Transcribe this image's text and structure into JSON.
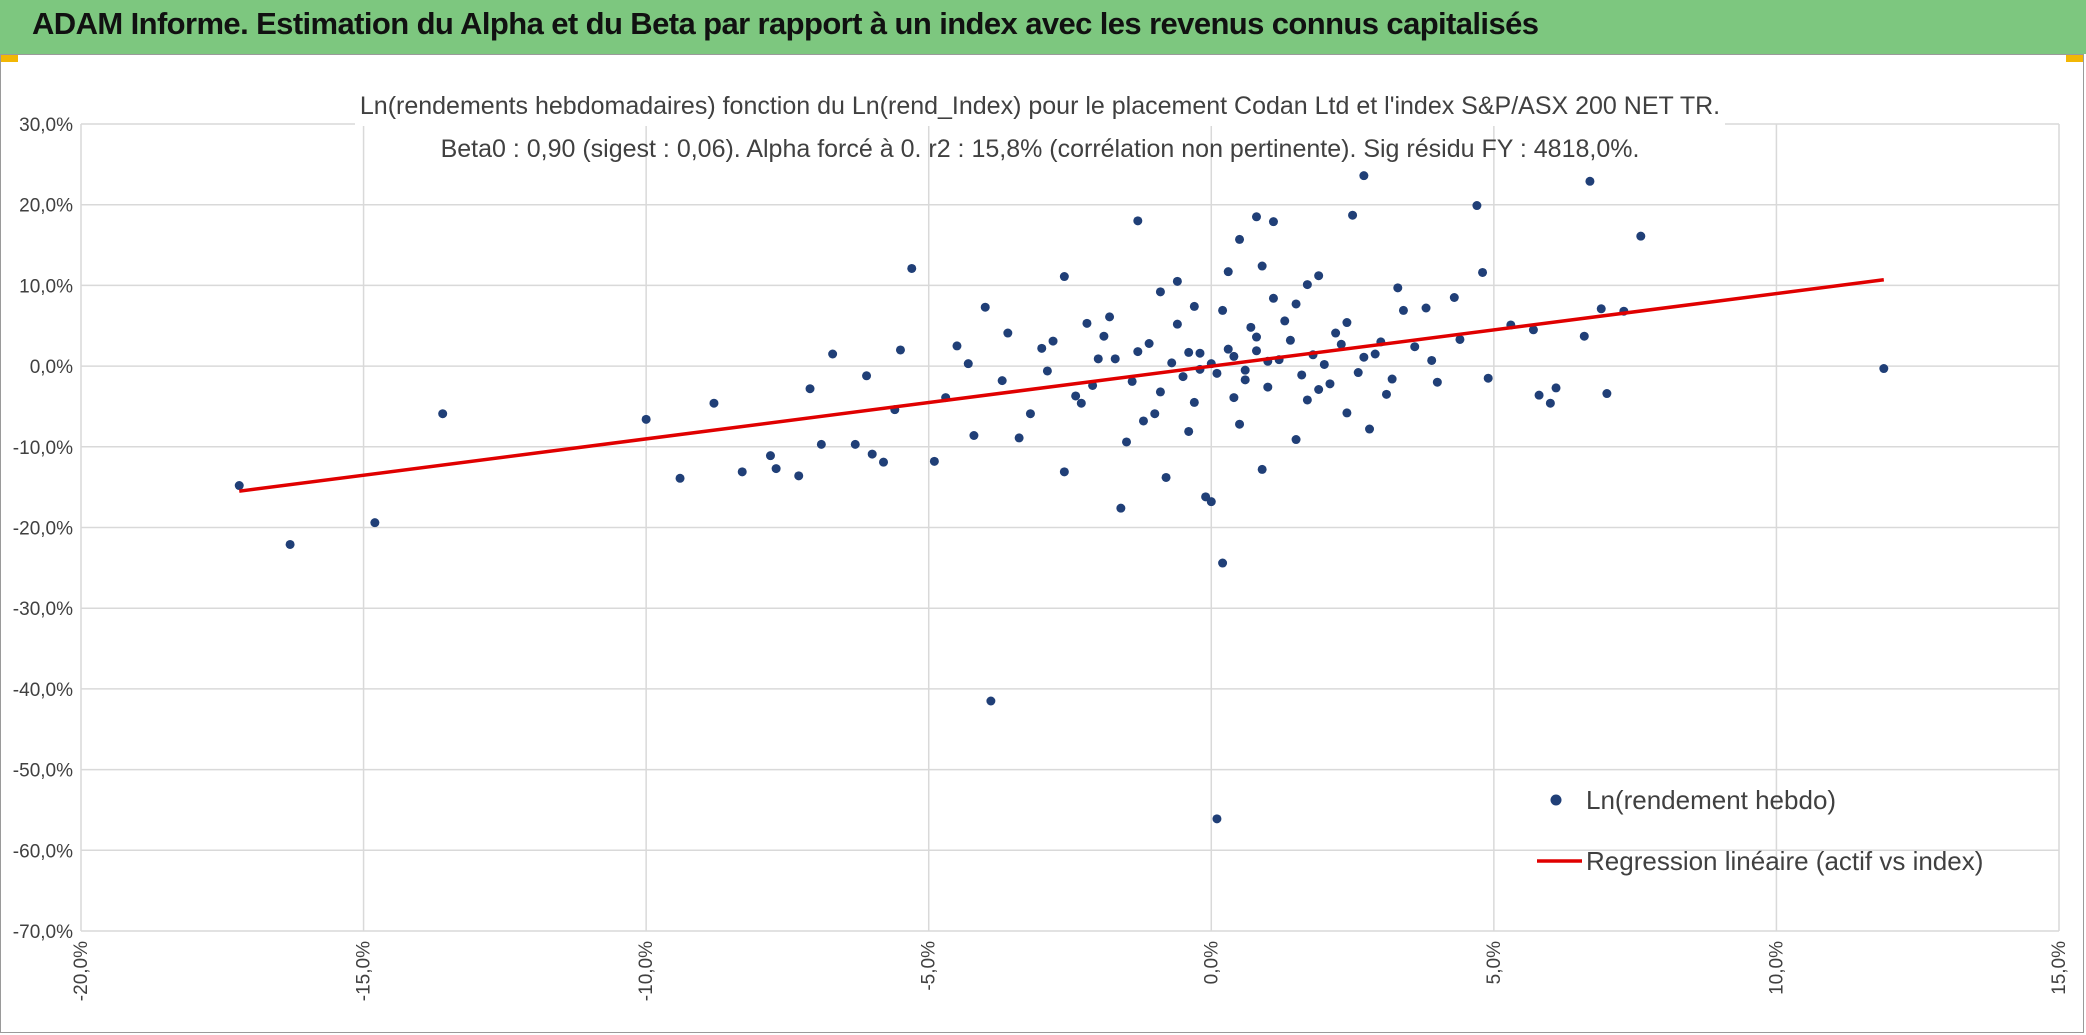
{
  "header": {
    "title": "ADAM Informe. Estimation du Alpha et du Beta par rapport à un index avec les revenus connus capitalisés"
  },
  "colors": {
    "header_bg": "#7dc77f",
    "accent": "#f2b705",
    "points": "#203f77",
    "regression": "#e00000",
    "grid": "#d9d9d9"
  },
  "chart_data": {
    "type": "scatter",
    "title_line1": "Ln(rendements hebdomadaires) fonction du Ln(rend_Index) pour le placement Codan Ltd et l'index S&P/ASX 200 NET TR.",
    "title_line2": "Beta0 : 0,90 (sigest : 0,06). Alpha forcé à 0. r2 : 15,8% (corrélation non pertinente). Sig résidu FY : 4818,0%.",
    "xlim": [
      -20,
      15
    ],
    "ylim": [
      -70,
      30
    ],
    "x_ticks": [
      -20,
      -15,
      -10,
      -5,
      0,
      5,
      10,
      15
    ],
    "y_ticks": [
      30,
      20,
      10,
      0,
      -10,
      -20,
      -30,
      -40,
      -50,
      -60,
      -70
    ],
    "x_tick_labels": [
      "-20,0%",
      "-15,0%",
      "-10,0%",
      "-5,0%",
      "0,0%",
      "5,0%",
      "10,0%",
      "15,0%"
    ],
    "y_tick_labels": [
      "30,0%",
      "20,0%",
      "10,0%",
      "0,0%",
      "-10,0%",
      "-20,0%",
      "-30,0%",
      "-40,0%",
      "-50,0%",
      "-60,0%",
      "-70,0%"
    ],
    "series": [
      {
        "name": "Ln(rendement hebdo)",
        "kind": "scatter",
        "points": [
          [
            -17.2,
            -14.8
          ],
          [
            -16.3,
            -22.1
          ],
          [
            -14.8,
            -19.4
          ],
          [
            -13.6,
            -5.9
          ],
          [
            -10.0,
            -6.6
          ],
          [
            -9.4,
            -13.9
          ],
          [
            -8.8,
            -4.6
          ],
          [
            -8.3,
            -13.1
          ],
          [
            -7.8,
            -11.1
          ],
          [
            -7.7,
            -12.7
          ],
          [
            -7.3,
            -13.6
          ],
          [
            -7.1,
            -2.8
          ],
          [
            -6.9,
            -9.7
          ],
          [
            -6.7,
            1.5
          ],
          [
            -6.3,
            -9.7
          ],
          [
            -6.0,
            -10.9
          ],
          [
            -5.8,
            -11.9
          ],
          [
            -5.5,
            2.0
          ],
          [
            -5.3,
            12.1
          ],
          [
            -4.9,
            -11.8
          ],
          [
            -4.5,
            2.5
          ],
          [
            -4.3,
            0.3
          ],
          [
            -4.2,
            -8.6
          ],
          [
            -4.0,
            7.3
          ],
          [
            -3.9,
            -41.5
          ],
          [
            -3.6,
            4.1
          ],
          [
            -3.0,
            2.2
          ],
          [
            -2.6,
            11.1
          ],
          [
            -2.3,
            -4.6
          ],
          [
            -2.2,
            5.3
          ],
          [
            -2.6,
            -13.1
          ],
          [
            -1.9,
            3.7
          ],
          [
            -1.6,
            -17.6
          ],
          [
            -1.3,
            18.0
          ],
          [
            -1.0,
            -5.9
          ],
          [
            -0.8,
            -13.8
          ],
          [
            -0.6,
            10.5
          ],
          [
            -0.4,
            1.7
          ],
          [
            -0.3,
            7.4
          ],
          [
            -0.1,
            -16.2
          ],
          [
            0.0,
            -16.8
          ],
          [
            0.1,
            -56.1
          ],
          [
            0.2,
            -24.4
          ],
          [
            0.3,
            11.7
          ],
          [
            0.5,
            15.7
          ],
          [
            0.8,
            18.5
          ],
          [
            1.1,
            17.9
          ],
          [
            0.9,
            -12.8
          ],
          [
            1.5,
            7.7
          ],
          [
            1.9,
            11.2
          ],
          [
            2.1,
            -2.2
          ],
          [
            2.4,
            5.4
          ],
          [
            2.5,
            18.7
          ],
          [
            2.7,
            23.6
          ],
          [
            2.8,
            -7.8
          ],
          [
            3.0,
            3.0
          ],
          [
            3.4,
            6.9
          ],
          [
            3.8,
            7.2
          ],
          [
            4.0,
            -2.0
          ],
          [
            4.3,
            8.5
          ],
          [
            4.7,
            19.9
          ],
          [
            4.8,
            11.6
          ],
          [
            4.9,
            -1.5
          ],
          [
            5.3,
            5.1
          ],
          [
            5.7,
            4.5
          ],
          [
            5.8,
            -3.6
          ],
          [
            6.0,
            -4.6
          ],
          [
            6.1,
            -2.7
          ],
          [
            6.6,
            3.7
          ],
          [
            6.7,
            22.9
          ],
          [
            6.9,
            7.1
          ],
          [
            7.0,
            -3.4
          ],
          [
            7.3,
            6.8
          ],
          [
            7.6,
            16.1
          ],
          [
            11.9,
            -0.3
          ],
          [
            -3.2,
            -5.9
          ],
          [
            -2.9,
            -0.6
          ],
          [
            -2.1,
            -2.4
          ],
          [
            -1.7,
            0.9
          ],
          [
            -1.4,
            -1.9
          ],
          [
            -1.1,
            2.8
          ],
          [
            -0.9,
            -3.2
          ],
          [
            -0.7,
            0.4
          ],
          [
            -0.5,
            -1.3
          ],
          [
            -0.2,
            1.6
          ],
          [
            0.1,
            -0.9
          ],
          [
            0.3,
            2.1
          ],
          [
            0.6,
            -0.5
          ],
          [
            0.8,
            1.9
          ],
          [
            1.0,
            -2.6
          ],
          [
            1.2,
            0.8
          ],
          [
            1.4,
            3.2
          ],
          [
            1.6,
            -1.1
          ],
          [
            1.8,
            1.4
          ],
          [
            2.0,
            0.2
          ],
          [
            2.3,
            2.7
          ],
          [
            2.6,
            -0.8
          ],
          [
            2.9,
            1.5
          ],
          [
            3.2,
            -1.6
          ],
          [
            3.6,
            2.4
          ],
          [
            -3.7,
            -1.8
          ],
          [
            -2.4,
            -3.7
          ],
          [
            -1.2,
            -6.8
          ],
          [
            -0.3,
            -4.5
          ],
          [
            0.4,
            -3.9
          ],
          [
            0.7,
            4.8
          ],
          [
            1.3,
            5.6
          ],
          [
            1.7,
            -4.2
          ],
          [
            2.2,
            4.1
          ],
          [
            3.1,
            -3.5
          ],
          [
            -1.8,
            6.1
          ],
          [
            -0.6,
            5.2
          ],
          [
            0.2,
            6.9
          ],
          [
            1.1,
            8.4
          ],
          [
            -2.8,
            3.1
          ],
          [
            3.9,
            0.7
          ],
          [
            4.4,
            3.3
          ],
          [
            -4.7,
            -3.9
          ],
          [
            -5.6,
            -5.4
          ],
          [
            -6.1,
            -1.2
          ],
          [
            -1.5,
            -9.4
          ],
          [
            -0.4,
            -8.1
          ],
          [
            0.5,
            -7.2
          ],
          [
            1.5,
            -9.1
          ],
          [
            2.4,
            -5.8
          ],
          [
            -0.9,
            9.2
          ],
          [
            0.9,
            12.4
          ],
          [
            1.7,
            10.1
          ],
          [
            3.3,
            9.7
          ],
          [
            -3.4,
            -8.9
          ],
          [
            0.0,
            0.3
          ],
          [
            0.4,
            1.2
          ],
          [
            -0.2,
            -0.4
          ],
          [
            1.0,
            0.6
          ],
          [
            0.6,
            -1.7
          ],
          [
            -1.3,
            1.8
          ],
          [
            1.9,
            -2.9
          ],
          [
            2.7,
            1.1
          ],
          [
            -2.0,
            0.9
          ],
          [
            0.8,
            3.6
          ]
        ]
      },
      {
        "name": "Regression linéaire (actif vs index)",
        "kind": "line",
        "points": [
          [
            -17.2,
            -15.5
          ],
          [
            11.9,
            10.7
          ]
        ]
      }
    ],
    "legend": [
      {
        "label": "Ln(rendement hebdo)",
        "marker": "dot"
      },
      {
        "label": "Regression linéaire (actif vs index)",
        "marker": "line"
      }
    ],
    "legend_position": "bottom-right",
    "grid": true
  }
}
